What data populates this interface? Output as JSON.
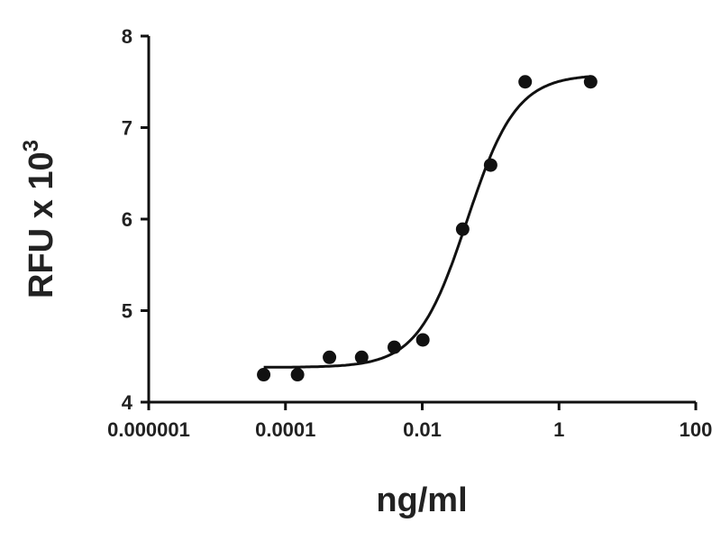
{
  "chart_data": {
    "type": "scatter",
    "title": "",
    "xlabel": "ng/ml",
    "ylabel": "RFU x 10",
    "ylabel_superscript": "3",
    "x_scale": "log",
    "xlim": [
      1e-06,
      100
    ],
    "ylim": [
      4,
      8
    ],
    "x_ticks": [
      1e-06,
      0.0001,
      0.01,
      1,
      100
    ],
    "x_tick_labels": [
      "0.000001",
      "0.0001",
      "0.01",
      "1",
      "100"
    ],
    "y_ticks": [
      4,
      5,
      6,
      7,
      8
    ],
    "y_tick_labels": [
      "4",
      "5",
      "6",
      "7",
      "8"
    ],
    "grid": false,
    "legend": "none",
    "points": {
      "x": [
        4.8e-05,
        0.00015,
        0.00044,
        0.0013,
        0.0039,
        0.0102,
        0.039,
        0.1,
        0.32,
        2.9
      ],
      "y": [
        4.3,
        4.3,
        4.49,
        4.49,
        4.6,
        4.68,
        5.89,
        6.59,
        7.5,
        7.5
      ]
    },
    "fit_curve": {
      "type": "four-parameter logistic",
      "bottom": 4.38,
      "top": 7.58,
      "ec50": 0.045,
      "hill_slope": 1.2
    },
    "color": "#111111"
  }
}
